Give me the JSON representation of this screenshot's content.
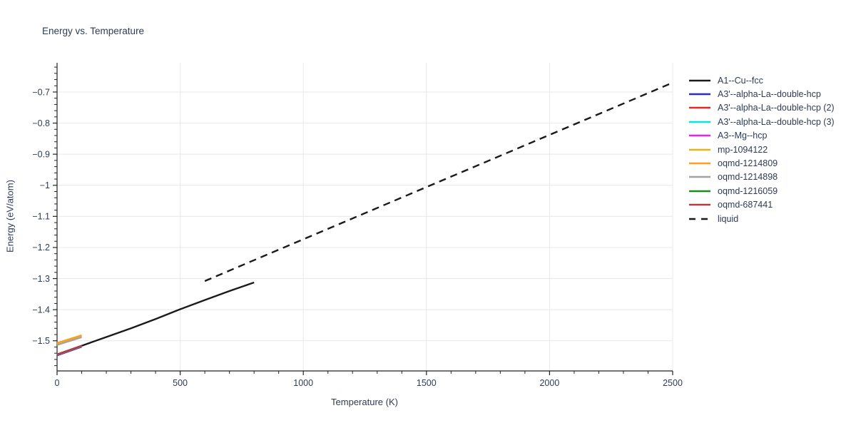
{
  "chart_data": {
    "type": "line",
    "title": "Energy vs. Temperature",
    "xlabel": "Temperature (K)",
    "ylabel": "Energy (eV/atom)",
    "xlim": [
      0,
      2500
    ],
    "ylim": [
      -1.597,
      -0.606
    ],
    "grid": true,
    "legend_position": "right-outside",
    "x_tick_values": [
      0,
      500,
      1000,
      1500,
      2000,
      2500
    ],
    "x_tick_labels": [
      "0",
      "500",
      "1000",
      "1500",
      "2000",
      "2500"
    ],
    "x_minor_step": 100,
    "y_tick_values": [
      -1.5,
      -1.4,
      -1.3,
      -1.2,
      -1.1,
      -1.0,
      -0.9,
      -0.8,
      -0.7
    ],
    "y_tick_labels": [
      "−1.5",
      "−1.4",
      "−1.3",
      "−1.2",
      "−1.1",
      "−1",
      "−0.9",
      "−0.8",
      "−0.7"
    ],
    "y_minor_step": 0.02,
    "text_color": "#2d3c55",
    "grid_color": "#e8e8e8",
    "axis_color": "#222222",
    "series": [
      {
        "name": "A1--Cu--fcc",
        "color": "#1a1a1a",
        "dash": "solid",
        "width": 2.4,
        "x": [
          0,
          100,
          200,
          300,
          400,
          500,
          600,
          700,
          800
        ],
        "y": [
          -1.5445,
          -1.516,
          -1.488,
          -1.46,
          -1.43,
          -1.3985,
          -1.369,
          -1.34,
          -1.3125
        ]
      },
      {
        "name": "A3'--alpha-La--double-hcp",
        "color": "#2a2ad6",
        "dash": "solid",
        "width": 2.2,
        "x": [
          0,
          100
        ],
        "y": [
          -1.5475,
          -1.5195
        ]
      },
      {
        "name": "A3'--alpha-La--double-hcp (2)",
        "color": "#e52727",
        "dash": "solid",
        "width": 2.2,
        "x": [
          0,
          100
        ],
        "y": [
          -1.546,
          -1.518
        ]
      },
      {
        "name": "A3'--alpha-La--double-hcp (3)",
        "color": "#00e5e5",
        "dash": "solid",
        "width": 2.2,
        "x": [
          0,
          100
        ],
        "y": [
          -1.545,
          -1.517
        ]
      },
      {
        "name": "A3--Mg--hcp",
        "color": "#ef1fef",
        "dash": "solid",
        "width": 2.2,
        "x": [
          0,
          100
        ],
        "y": [
          -1.5445,
          -1.5165
        ]
      },
      {
        "name": "mp-1094122",
        "color": "#e7b416",
        "dash": "solid",
        "width": 2.2,
        "x": [
          0,
          100
        ],
        "y": [
          -1.51,
          -1.485
        ]
      },
      {
        "name": "oqmd-1214809",
        "color": "#ff9e1b",
        "dash": "solid",
        "width": 2.2,
        "x": [
          0,
          100
        ],
        "y": [
          -1.507,
          -1.482
        ]
      },
      {
        "name": "oqmd-1214898",
        "color": "#a3a3a3",
        "dash": "solid",
        "width": 2.2,
        "x": [
          0,
          100
        ],
        "y": [
          -1.5138,
          -1.4888
        ]
      },
      {
        "name": "oqmd-1216059",
        "color": "#1e8c1e",
        "dash": "solid",
        "width": 2.2,
        "x": [
          0,
          100
        ],
        "y": [
          -1.544,
          -1.516
        ]
      },
      {
        "name": "oqmd-687441",
        "color": "#b23b3b",
        "dash": "solid",
        "width": 2.2,
        "x": [
          0,
          100
        ],
        "y": [
          -1.5435,
          -1.5155
        ]
      },
      {
        "name": "liquid",
        "color": "#1a1a1a",
        "dash": "dashed",
        "width": 2.4,
        "x": [
          600,
          2500
        ],
        "y": [
          -1.308,
          -0.67
        ]
      }
    ]
  }
}
